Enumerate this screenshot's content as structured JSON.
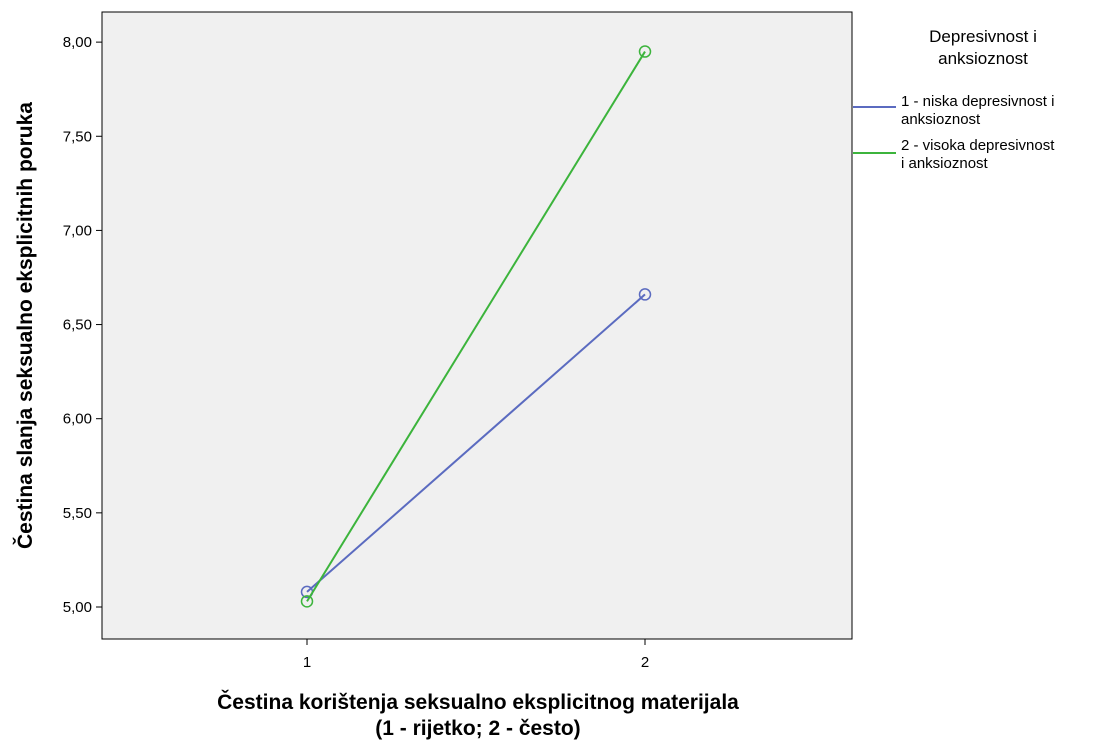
{
  "chart_data": {
    "type": "line",
    "categories": [
      "1",
      "2"
    ],
    "series": [
      {
        "name": "1 - niska depresivnost i anksioznost",
        "values": [
          5.08,
          6.66
        ],
        "color": "#5b6bc0"
      },
      {
        "name": "2 - visoka depresivnost i anksioznost",
        "values": [
          5.03,
          7.95
        ],
        "color": "#3cb43c"
      }
    ],
    "xlabel_lines": [
      "Čestina korištenja seksualno eksplicitnog materijala",
      "(1 - rijetko; 2 - često)"
    ],
    "ylabel": "Čestina slanja seksualno eksplicitnih poruka",
    "ylim": [
      4.83,
      8.16
    ],
    "yticks": [
      5.0,
      5.5,
      6.0,
      6.5,
      7.0,
      7.5,
      8.0
    ],
    "ytick_labels": [
      "5,00",
      "5,50",
      "6,00",
      "6,50",
      "7,00",
      "7,50",
      "8,00"
    ],
    "legend": {
      "title_lines": [
        "Depresivnost i",
        "anksioznost"
      ],
      "entries": [
        {
          "lines": [
            "1 - niska depresivnost i",
            "anksioznost"
          ]
        },
        {
          "lines": [
            "2 - visoka depresivnost",
            "i anksioznost"
          ]
        }
      ],
      "placement": "right"
    },
    "plot_background": "#f0f0f0",
    "grid": false
  }
}
